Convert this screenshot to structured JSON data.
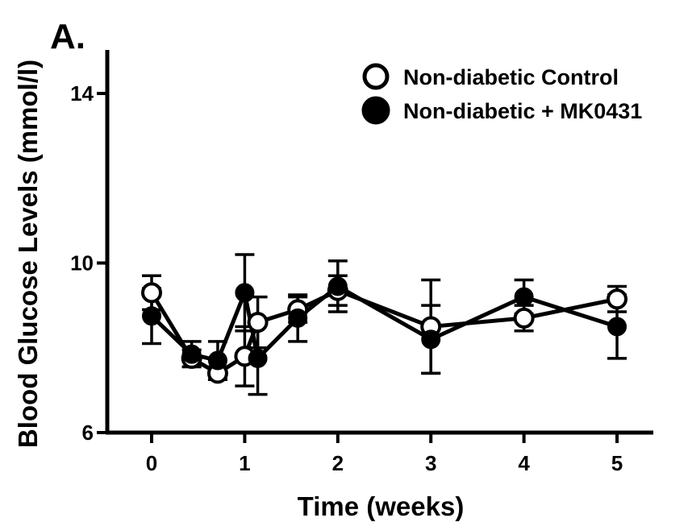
{
  "panel_label": "A.",
  "chart_data": {
    "type": "line",
    "xlabel": "Time (weeks)",
    "ylabel": "Blood Glucose Levels (mmol/l)",
    "xlim": [
      -0.25,
      5.5
    ],
    "ylim": [
      6,
      15
    ],
    "x_ticks": [
      0,
      1,
      2,
      3,
      4,
      5
    ],
    "y_ticks": [
      6,
      10,
      14
    ],
    "legend_position": "top-right",
    "series": [
      {
        "name": "Non-diabetic Control",
        "marker": "open-circle",
        "color": "#000000",
        "x": [
          0,
          0.43,
          0.71,
          1.0,
          1.14,
          1.57,
          2.0,
          3.0,
          4.0,
          5.0
        ],
        "y": [
          9.3,
          7.75,
          7.4,
          7.8,
          8.6,
          8.9,
          9.35,
          8.5,
          8.7,
          9.15
        ],
        "err_lower": [
          0.4,
          0.2,
          0.15,
          0.7,
          0.6,
          0.3,
          0.35,
          1.1,
          0.3,
          0.3
        ],
        "err_upper": [
          0.4,
          0.2,
          0.15,
          0.7,
          0.6,
          0.3,
          0.35,
          1.1,
          0.3,
          0.3
        ]
      },
      {
        "name": "Non-diabetic + MK0431",
        "marker": "filled-circle",
        "color": "#000000",
        "x": [
          0,
          0.43,
          0.71,
          1.0,
          1.14,
          1.57,
          2.0,
          3.0,
          4.0,
          5.0
        ],
        "y": [
          8.75,
          7.85,
          7.7,
          9.3,
          7.75,
          8.7,
          9.45,
          8.2,
          9.2,
          8.5
        ],
        "err_lower": [
          0.65,
          0.3,
          0.45,
          0.9,
          0.85,
          0.55,
          0.6,
          0.8,
          0.4,
          0.75
        ],
        "err_upper": [
          0.65,
          0.3,
          0.45,
          0.9,
          0.85,
          0.55,
          0.6,
          0.8,
          0.4,
          0.75
        ]
      }
    ]
  }
}
